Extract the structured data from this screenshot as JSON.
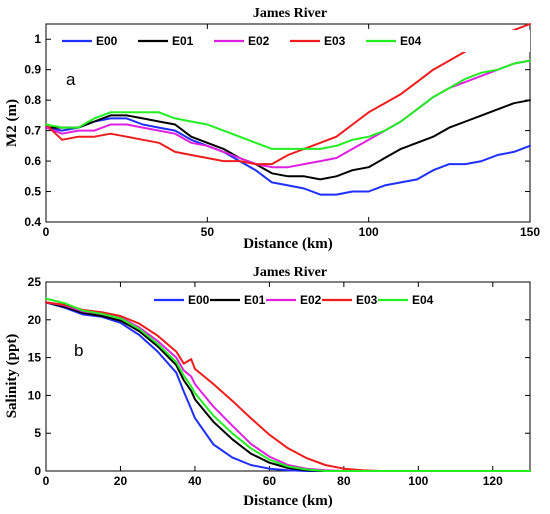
{
  "chart_data": [
    {
      "type": "line",
      "title": "James River",
      "panel_label": "a",
      "xlabel": "Distance (km)",
      "ylabel": "M2 (m)",
      "xlim": [
        0,
        150
      ],
      "ylim": [
        0.4,
        1.05
      ],
      "xticks": [
        0,
        50,
        100,
        150
      ],
      "yticks": [
        0.4,
        0.5,
        0.6,
        0.7,
        0.8,
        0.9,
        1
      ],
      "grid": false,
      "legend_position": "top",
      "series": [
        {
          "name": "E00",
          "color": "#1f2fff",
          "x": [
            0,
            5,
            10,
            15,
            20,
            25,
            30,
            35,
            40,
            45,
            50,
            55,
            60,
            65,
            70,
            75,
            80,
            85,
            90,
            95,
            100,
            105,
            110,
            115,
            120,
            125,
            130,
            135,
            140,
            145,
            150
          ],
          "y": [
            0.71,
            0.7,
            0.71,
            0.73,
            0.74,
            0.74,
            0.72,
            0.71,
            0.7,
            0.67,
            0.65,
            0.63,
            0.6,
            0.57,
            0.53,
            0.52,
            0.51,
            0.49,
            0.49,
            0.5,
            0.5,
            0.52,
            0.53,
            0.54,
            0.57,
            0.59,
            0.59,
            0.6,
            0.62,
            0.63,
            0.65
          ]
        },
        {
          "name": "E01",
          "color": "#000000",
          "x": [
            0,
            5,
            10,
            15,
            20,
            25,
            30,
            35,
            40,
            45,
            50,
            55,
            60,
            65,
            70,
            75,
            80,
            85,
            90,
            95,
            100,
            105,
            110,
            115,
            120,
            125,
            130,
            135,
            140,
            145,
            150
          ],
          "y": [
            0.71,
            0.71,
            0.71,
            0.73,
            0.75,
            0.75,
            0.74,
            0.73,
            0.72,
            0.68,
            0.66,
            0.64,
            0.61,
            0.59,
            0.56,
            0.55,
            0.55,
            0.54,
            0.55,
            0.57,
            0.58,
            0.61,
            0.64,
            0.66,
            0.68,
            0.71,
            0.73,
            0.75,
            0.77,
            0.79,
            0.8
          ]
        },
        {
          "name": "E02",
          "color": "#e020e0",
          "x": [
            0,
            5,
            10,
            15,
            20,
            25,
            30,
            35,
            40,
            45,
            50,
            55,
            60,
            65,
            70,
            75,
            80,
            85,
            90,
            95,
            100,
            105,
            110,
            115,
            120,
            125,
            130,
            135,
            140,
            145,
            150
          ],
          "y": [
            0.71,
            0.69,
            0.7,
            0.7,
            0.72,
            0.72,
            0.71,
            0.7,
            0.69,
            0.66,
            0.65,
            0.63,
            0.61,
            0.59,
            0.58,
            0.58,
            0.59,
            0.6,
            0.61,
            0.64,
            0.67,
            0.7,
            0.73,
            0.77,
            0.81,
            0.84,
            0.86,
            0.88,
            0.9,
            0.92,
            0.93
          ]
        },
        {
          "name": "E03",
          "color": "#ee1c1c",
          "x": [
            0,
            5,
            10,
            15,
            20,
            25,
            30,
            35,
            40,
            45,
            50,
            55,
            60,
            65,
            70,
            75,
            80,
            85,
            90,
            95,
            100,
            105,
            110,
            115,
            120,
            125,
            130,
            135,
            140,
            145,
            150
          ],
          "y": [
            0.72,
            0.67,
            0.68,
            0.68,
            0.69,
            0.68,
            0.67,
            0.66,
            0.63,
            0.62,
            0.61,
            0.6,
            0.6,
            0.59,
            0.59,
            0.62,
            0.64,
            0.66,
            0.68,
            0.72,
            0.76,
            0.79,
            0.82,
            0.86,
            0.9,
            0.93,
            0.96,
            0.99,
            1.01,
            1.03,
            1.05
          ]
        },
        {
          "name": "E04",
          "color": "#22ee22",
          "x": [
            0,
            5,
            10,
            15,
            20,
            25,
            30,
            35,
            40,
            45,
            50,
            55,
            60,
            65,
            70,
            75,
            80,
            85,
            90,
            95,
            100,
            105,
            110,
            115,
            120,
            125,
            130,
            135,
            140,
            145,
            150
          ],
          "y": [
            0.72,
            0.71,
            0.71,
            0.74,
            0.76,
            0.76,
            0.76,
            0.76,
            0.74,
            0.73,
            0.72,
            0.7,
            0.68,
            0.66,
            0.64,
            0.64,
            0.64,
            0.64,
            0.65,
            0.67,
            0.68,
            0.7,
            0.73,
            0.77,
            0.81,
            0.84,
            0.87,
            0.89,
            0.9,
            0.92,
            0.93
          ]
        }
      ]
    },
    {
      "type": "line",
      "title": "James River",
      "panel_label": "b",
      "xlabel": "Distance (km)",
      "ylabel": "Salinity (ppt)",
      "xlim": [
        0,
        130
      ],
      "ylim": [
        0,
        25
      ],
      "xticks": [
        0,
        20,
        40,
        60,
        80,
        100,
        120
      ],
      "yticks": [
        0,
        5,
        10,
        15,
        20,
        25
      ],
      "grid": false,
      "legend_position": "top",
      "series": [
        {
          "name": "E00",
          "color": "#1f2fff",
          "x": [
            0,
            5,
            10,
            15,
            20,
            25,
            30,
            35,
            37,
            39,
            40,
            45,
            50,
            55,
            60,
            65,
            70,
            75,
            80,
            90,
            100,
            110,
            120,
            130
          ],
          "y": [
            22.3,
            21.6,
            20.7,
            20.4,
            19.6,
            18.0,
            15.8,
            13.0,
            10.5,
            8.2,
            7.0,
            3.5,
            1.8,
            0.8,
            0.3,
            0.1,
            0,
            0,
            0,
            0,
            0,
            0,
            0,
            0
          ]
        },
        {
          "name": "E01",
          "color": "#000000",
          "x": [
            0,
            5,
            10,
            15,
            20,
            25,
            30,
            35,
            37,
            39,
            40,
            45,
            50,
            55,
            60,
            65,
            70,
            75,
            80,
            90,
            100,
            110,
            120,
            130
          ],
          "y": [
            22.3,
            21.7,
            20.9,
            20.5,
            19.9,
            18.5,
            16.5,
            14.0,
            12.0,
            10.6,
            9.5,
            6.5,
            4.2,
            2.3,
            1.1,
            0.4,
            0.1,
            0,
            0,
            0,
            0,
            0,
            0,
            0
          ]
        },
        {
          "name": "E02",
          "color": "#e020e0",
          "x": [
            0,
            5,
            10,
            15,
            20,
            25,
            30,
            35,
            37,
            39,
            40,
            45,
            50,
            55,
            60,
            65,
            70,
            75,
            80,
            90,
            100,
            110,
            120,
            130
          ],
          "y": [
            22.3,
            21.9,
            21.1,
            20.8,
            20.3,
            19.0,
            17.2,
            15.0,
            13.3,
            12.5,
            11.5,
            8.5,
            6.0,
            3.6,
            1.9,
            0.8,
            0.3,
            0.1,
            0,
            0,
            0,
            0,
            0,
            0
          ]
        },
        {
          "name": "E03",
          "color": "#ee1c1c",
          "x": [
            0,
            5,
            10,
            15,
            20,
            25,
            30,
            35,
            37,
            39,
            40,
            45,
            50,
            55,
            60,
            65,
            70,
            75,
            80,
            85,
            90,
            100,
            110,
            120,
            130
          ],
          "y": [
            22.3,
            22.0,
            21.3,
            21.0,
            20.5,
            19.5,
            17.9,
            15.8,
            14.2,
            14.8,
            13.5,
            11.5,
            9.3,
            7.0,
            4.8,
            3.0,
            1.7,
            0.8,
            0.3,
            0.1,
            0,
            0,
            0,
            0,
            0
          ]
        },
        {
          "name": "E04",
          "color": "#22ee22",
          "x": [
            0,
            5,
            10,
            15,
            20,
            25,
            30,
            35,
            37,
            39,
            40,
            45,
            50,
            55,
            60,
            65,
            70,
            75,
            80,
            90,
            100,
            110,
            120,
            130
          ],
          "y": [
            22.8,
            22.2,
            21.2,
            20.8,
            20.2,
            18.8,
            16.8,
            14.4,
            12.6,
            11.2,
            10.3,
            7.3,
            5.0,
            3.0,
            1.5,
            0.6,
            0.2,
            0,
            0,
            0,
            0,
            0,
            0,
            0
          ]
        }
      ]
    }
  ]
}
